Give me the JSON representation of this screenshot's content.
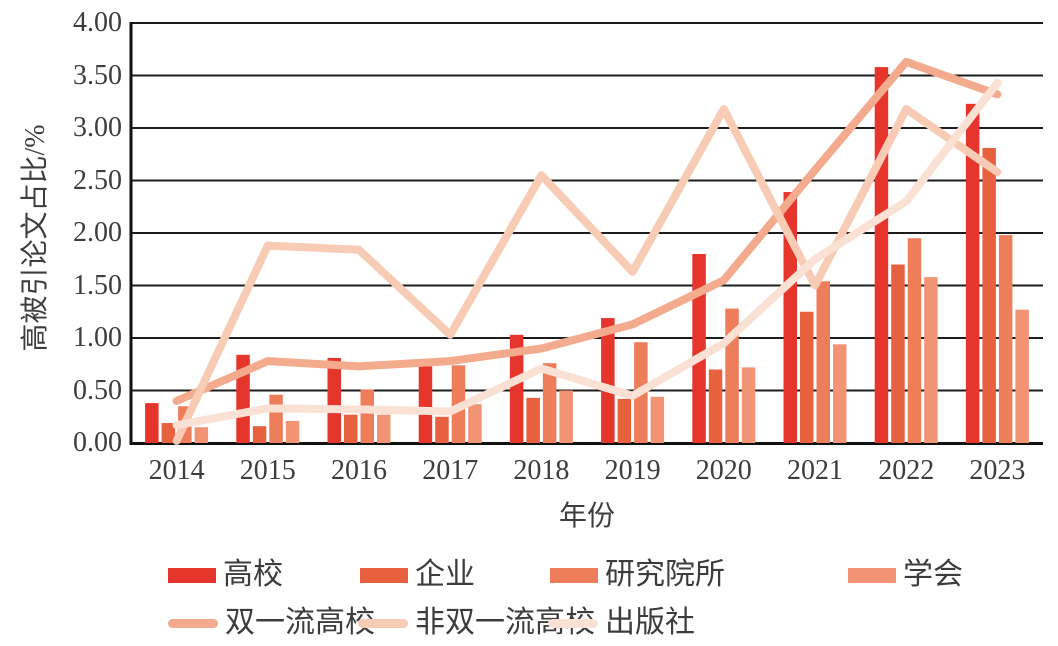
{
  "chart_data": {
    "type": "combo-bar-line",
    "categories": [
      "2014",
      "2015",
      "2016",
      "2017",
      "2018",
      "2019",
      "2020",
      "2021",
      "2022",
      "2023"
    ],
    "bar_series": [
      {
        "name": "高校",
        "color": "#e6352b",
        "values": [
          0.38,
          0.84,
          0.81,
          0.73,
          1.03,
          1.19,
          1.8,
          2.39,
          3.58,
          3.23
        ]
      },
      {
        "name": "企业",
        "color": "#e7613f",
        "values": [
          0.19,
          0.16,
          0.27,
          0.25,
          0.43,
          0.42,
          0.7,
          1.25,
          1.7,
          2.81
        ]
      },
      {
        "name": "研究院所",
        "color": "#ee7d5a",
        "values": [
          0.35,
          0.46,
          0.51,
          0.74,
          0.76,
          0.96,
          1.28,
          1.54,
          1.95,
          1.98
        ]
      },
      {
        "name": "学会",
        "color": "#f29374",
        "values": [
          0.15,
          0.21,
          0.27,
          0.37,
          0.5,
          0.44,
          0.72,
          0.94,
          1.58,
          1.27
        ]
      }
    ],
    "line_series": [
      {
        "name": "双一流高校",
        "color": "#f4aa8d",
        "values": [
          0.4,
          0.78,
          0.73,
          0.78,
          0.9,
          1.13,
          1.55,
          2.6,
          3.63,
          3.32
        ]
      },
      {
        "name": "非双一流高校",
        "color": "#f8cbb4",
        "values": [
          0.02,
          1.88,
          1.84,
          1.03,
          2.55,
          1.63,
          3.18,
          1.5,
          3.18,
          2.58
        ]
      },
      {
        "name": "出版社",
        "color": "#fbe0d4",
        "values": [
          0.17,
          0.33,
          0.32,
          0.3,
          0.71,
          0.45,
          0.95,
          1.75,
          2.3,
          3.43
        ]
      }
    ],
    "x_axis": {
      "title": "年份"
    },
    "y_axis": {
      "title": "高被引论文占比/%",
      "min": 0,
      "max": 4,
      "step": 0.5,
      "tick_labels": [
        "0.00",
        "0.50",
        "1.00",
        "1.50",
        "2.00",
        "2.50",
        "3.00",
        "3.50",
        "4.00"
      ]
    },
    "grid": "horizontal",
    "legend_position": "bottom",
    "legend_rows": [
      [
        "高校",
        "企业",
        "研究院所",
        "学会"
      ],
      [
        "双一流高校",
        "非双一流高校",
        "出版社"
      ]
    ]
  }
}
